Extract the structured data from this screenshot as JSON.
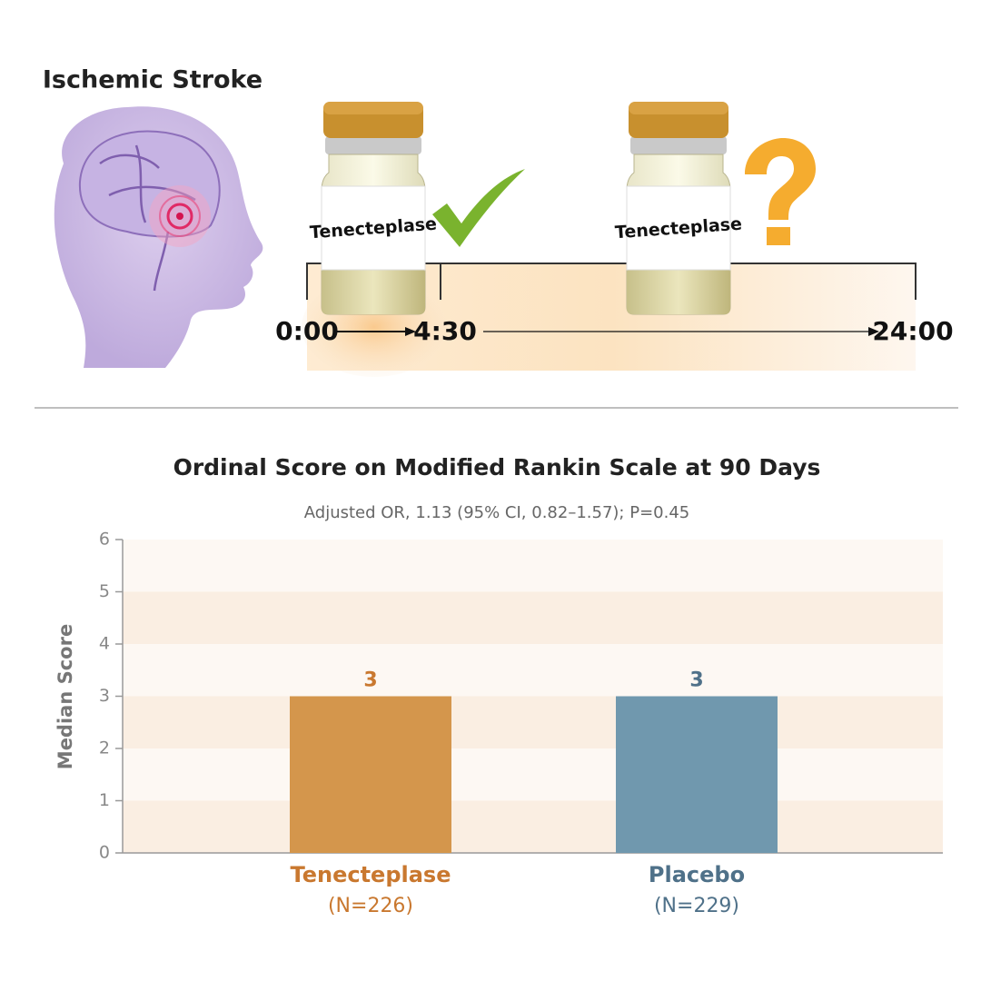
{
  "header": {
    "title": "Ischemic Stroke",
    "vial_labels": [
      "Tenecteplase",
      "Tenecteplase"
    ],
    "timeline_labels": [
      "0:00",
      "4:30",
      "24:00"
    ]
  },
  "chart_data": {
    "type": "bar",
    "title": "Ordinal Score on Modified Rankin Scale at 90 Days",
    "subtitle": "Adjusted OR, 1.13 (95% CI, 0.82–1.57); P=0.45",
    "y_label": "Median Score",
    "categories": [
      "Tenecteplase",
      "Placebo"
    ],
    "category_notes": [
      "(N=226)",
      "(N=229)"
    ],
    "values": [
      3,
      3
    ],
    "colors": [
      "#d4964c",
      "#7098ae"
    ],
    "label_colors": [
      "#c9782f",
      "#4f7189"
    ],
    "ylim": [
      0,
      6
    ],
    "yticks": [
      0,
      1,
      2,
      3,
      4,
      5,
      6
    ]
  }
}
